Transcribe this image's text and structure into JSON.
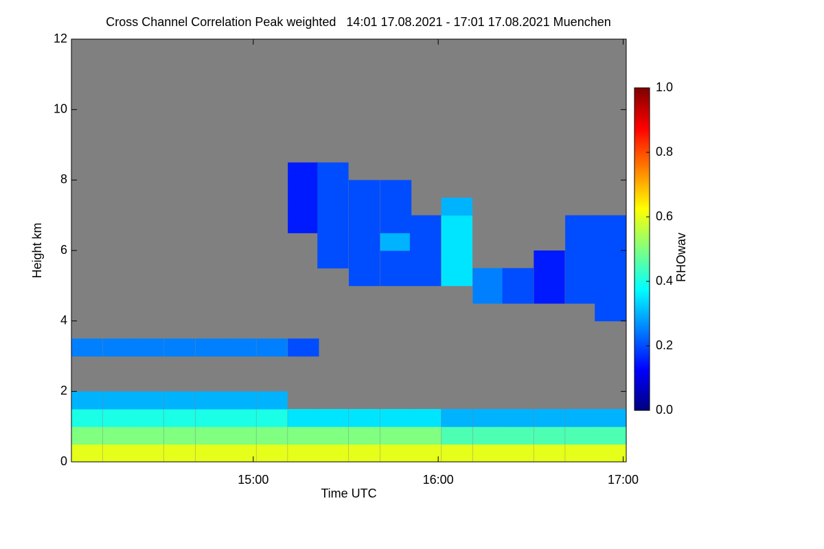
{
  "chart_data": {
    "type": "heatmap",
    "title": "Cross Channel Correlation Peak weighted   14:01 17.08.2021 - 17:01 17.08.2021 Muenchen",
    "x_label": "Time UTC",
    "y_label": "Height km",
    "colorbar_label": "RHOwav",
    "colormap": "jet",
    "missing_color": "#808080",
    "xlim": [
      14.0167,
      17.0167
    ],
    "xticks": [
      {
        "value": 15,
        "label": "15:00"
      },
      {
        "value": 16,
        "label": "16:00"
      },
      {
        "value": 17,
        "label": "17:00"
      }
    ],
    "ylim": [
      0,
      12
    ],
    "yticks": [
      0,
      2,
      4,
      6,
      8,
      10,
      12
    ],
    "clim": [
      0,
      1
    ],
    "cticks": [
      {
        "value": 0,
        "label": "0.0"
      },
      {
        "value": 0.2,
        "label": "0.2"
      },
      {
        "value": 0.4,
        "label": "0.4"
      },
      {
        "value": 0.6,
        "label": "0.6"
      },
      {
        "value": 0.8,
        "label": "0.8"
      },
      {
        "value": 1,
        "label": "1.0"
      }
    ],
    "x": [
      14.1,
      14.27,
      14.43,
      14.6,
      14.77,
      14.93,
      15.1,
      15.27,
      15.43,
      15.6,
      15.77,
      15.93,
      16.1,
      16.27,
      16.43,
      16.6,
      16.77,
      16.93
    ],
    "y": [
      0.25,
      0.75,
      1.25,
      1.75,
      2.25,
      2.75,
      3.25,
      3.75,
      4.25,
      4.75,
      5.25,
      5.75,
      6.25,
      6.75,
      7.25,
      7.75,
      8.25,
      8.75,
      9.25,
      9.75,
      10.25,
      10.75,
      11.25,
      11.75
    ],
    "z": [
      [
        0.6,
        0.5,
        0.4,
        0.3,
        null,
        null,
        0.25,
        null,
        null,
        null,
        null,
        null,
        null,
        null,
        null,
        null,
        null,
        null,
        null,
        null,
        null,
        null,
        null,
        null
      ],
      [
        0.6,
        0.5,
        0.4,
        0.3,
        null,
        null,
        0.25,
        null,
        null,
        null,
        null,
        null,
        null,
        null,
        null,
        null,
        null,
        null,
        null,
        null,
        null,
        null,
        null,
        null
      ],
      [
        0.6,
        0.5,
        0.4,
        0.3,
        null,
        null,
        0.25,
        null,
        null,
        null,
        null,
        null,
        null,
        null,
        null,
        null,
        null,
        null,
        null,
        null,
        null,
        null,
        null,
        null
      ],
      [
        0.6,
        0.5,
        0.4,
        0.3,
        null,
        null,
        0.25,
        null,
        null,
        null,
        null,
        null,
        null,
        null,
        null,
        null,
        null,
        null,
        null,
        null,
        null,
        null,
        null,
        null
      ],
      [
        0.6,
        0.5,
        0.4,
        0.3,
        null,
        null,
        0.25,
        null,
        null,
        null,
        null,
        null,
        null,
        null,
        null,
        null,
        null,
        null,
        null,
        null,
        null,
        null,
        null,
        null
      ],
      [
        0.6,
        0.5,
        0.4,
        0.3,
        null,
        null,
        0.25,
        null,
        null,
        null,
        null,
        null,
        null,
        null,
        null,
        null,
        null,
        null,
        null,
        null,
        null,
        null,
        null,
        null
      ],
      [
        0.6,
        0.5,
        0.4,
        0.3,
        null,
        null,
        0.25,
        null,
        null,
        null,
        null,
        null,
        null,
        null,
        null,
        null,
        null,
        null,
        null,
        null,
        null,
        null,
        null,
        null
      ],
      [
        0.6,
        0.5,
        0.35,
        null,
        null,
        null,
        0.2,
        null,
        null,
        null,
        null,
        null,
        null,
        0.15,
        0.15,
        0.15,
        0.15,
        null,
        null,
        null,
        null,
        null,
        null,
        null
      ],
      [
        0.6,
        0.5,
        0.35,
        null,
        null,
        null,
        null,
        null,
        null,
        null,
        null,
        0.2,
        0.2,
        0.2,
        0.2,
        0.2,
        0.2,
        null,
        null,
        null,
        null,
        null,
        null,
        null
      ],
      [
        0.6,
        0.5,
        0.35,
        null,
        null,
        null,
        null,
        null,
        null,
        null,
        0.2,
        0.2,
        0.2,
        0.2,
        0.2,
        0.2,
        null,
        null,
        null,
        null,
        null,
        null,
        null,
        null
      ],
      [
        0.6,
        0.5,
        0.35,
        null,
        null,
        null,
        null,
        null,
        null,
        null,
        0.2,
        0.2,
        0.3,
        0.2,
        0.2,
        0.2,
        null,
        null,
        null,
        null,
        null,
        null,
        null,
        null
      ],
      [
        0.6,
        0.5,
        0.35,
        null,
        null,
        null,
        null,
        null,
        null,
        null,
        0.2,
        0.2,
        0.2,
        0.2,
        null,
        null,
        null,
        null,
        null,
        null,
        null,
        null,
        null,
        null
      ],
      [
        0.6,
        0.45,
        0.3,
        null,
        null,
        null,
        null,
        null,
        null,
        null,
        0.35,
        0.35,
        0.35,
        0.35,
        0.3,
        null,
        null,
        null,
        null,
        null,
        null,
        null,
        null,
        null
      ],
      [
        0.6,
        0.45,
        0.3,
        null,
        null,
        null,
        null,
        null,
        null,
        0.25,
        0.25,
        null,
        null,
        null,
        null,
        null,
        null,
        null,
        null,
        null,
        null,
        null,
        null,
        null
      ],
      [
        0.6,
        0.45,
        0.3,
        null,
        null,
        null,
        null,
        null,
        null,
        0.2,
        0.2,
        null,
        null,
        null,
        null,
        null,
        null,
        null,
        null,
        null,
        null,
        null,
        null,
        null
      ],
      [
        0.6,
        0.45,
        0.3,
        null,
        null,
        null,
        null,
        null,
        null,
        0.15,
        0.15,
        0.15,
        null,
        null,
        null,
        null,
        null,
        null,
        null,
        null,
        null,
        null,
        null,
        null
      ],
      [
        0.6,
        0.45,
        0.3,
        null,
        null,
        null,
        null,
        null,
        null,
        0.2,
        0.2,
        0.2,
        0.2,
        0.2,
        null,
        null,
        null,
        null,
        null,
        null,
        null,
        null,
        null,
        null
      ],
      [
        0.6,
        0.45,
        0.3,
        null,
        null,
        null,
        null,
        null,
        0.2,
        0.2,
        0.2,
        0.2,
        0.2,
        0.2,
        null,
        null,
        null,
        null,
        null,
        null,
        null,
        null,
        null,
        null
      ]
    ]
  }
}
